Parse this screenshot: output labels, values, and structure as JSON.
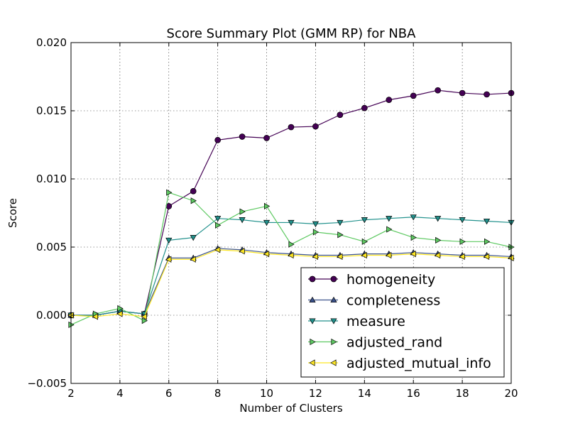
{
  "chart_data": {
    "type": "line",
    "title": "Score Summary Plot (GMM RP) for NBA",
    "xlabel": "Number of Clusters",
    "ylabel": "Score",
    "xlim": [
      2,
      20
    ],
    "ylim": [
      -0.005,
      0.02
    ],
    "xticks": [
      2,
      4,
      6,
      8,
      10,
      12,
      14,
      16,
      18,
      20
    ],
    "yticks": [
      -0.005,
      0.0,
      0.005,
      0.01,
      0.015,
      0.02
    ],
    "ytick_labels": [
      "−0.005",
      "0.000",
      "0.005",
      "0.010",
      "0.015",
      "0.020"
    ],
    "grid": true,
    "legend_position": "lower-right",
    "x": [
      2,
      3,
      4,
      5,
      6,
      7,
      8,
      9,
      10,
      11,
      12,
      13,
      14,
      15,
      16,
      17,
      18,
      19,
      20
    ],
    "series": [
      {
        "name": "homogeneity",
        "color": "#440154",
        "marker": "circle",
        "values": [
          0.0,
          0.0,
          0.0003,
          0.0001,
          0.008,
          0.0091,
          0.01285,
          0.0131,
          0.013,
          0.0138,
          0.01385,
          0.0147,
          0.0152,
          0.0158,
          0.0161,
          0.0165,
          0.0163,
          0.0162,
          0.0163
        ]
      },
      {
        "name": "completeness",
        "color": "#3b528b",
        "marker": "triangle-up",
        "values": [
          0.0,
          0.0,
          0.0003,
          0.0001,
          0.0042,
          0.0042,
          0.0049,
          0.0048,
          0.0046,
          0.0045,
          0.0044,
          0.0044,
          0.0045,
          0.0045,
          0.0046,
          0.0045,
          0.0044,
          0.0044,
          0.0043
        ]
      },
      {
        "name": "measure",
        "color": "#21918c",
        "marker": "triangle-down",
        "values": [
          0.0,
          0.0,
          0.0003,
          0.0001,
          0.0055,
          0.0057,
          0.0071,
          0.007,
          0.0068,
          0.0068,
          0.0067,
          0.0068,
          0.007,
          0.0071,
          0.0072,
          0.0071,
          0.007,
          0.0069,
          0.0068
        ]
      },
      {
        "name": "adjusted_rand",
        "color": "#5ec962",
        "marker": "triangle-right",
        "values": [
          -0.0007,
          0.0001,
          0.0005,
          -0.0004,
          0.009,
          0.0084,
          0.0066,
          0.0076,
          0.008,
          0.0052,
          0.0061,
          0.0059,
          0.0054,
          0.0063,
          0.0057,
          0.0055,
          0.0054,
          0.0054,
          0.005
        ]
      },
      {
        "name": "adjusted_mutual_info",
        "color": "#fde725",
        "marker": "triangle-left",
        "values": [
          0.0,
          -0.0001,
          0.0001,
          -0.0001,
          0.0041,
          0.0041,
          0.0048,
          0.0047,
          0.0045,
          0.0044,
          0.0043,
          0.0043,
          0.0044,
          0.0044,
          0.0045,
          0.0044,
          0.0043,
          0.0043,
          0.0042
        ]
      }
    ]
  }
}
